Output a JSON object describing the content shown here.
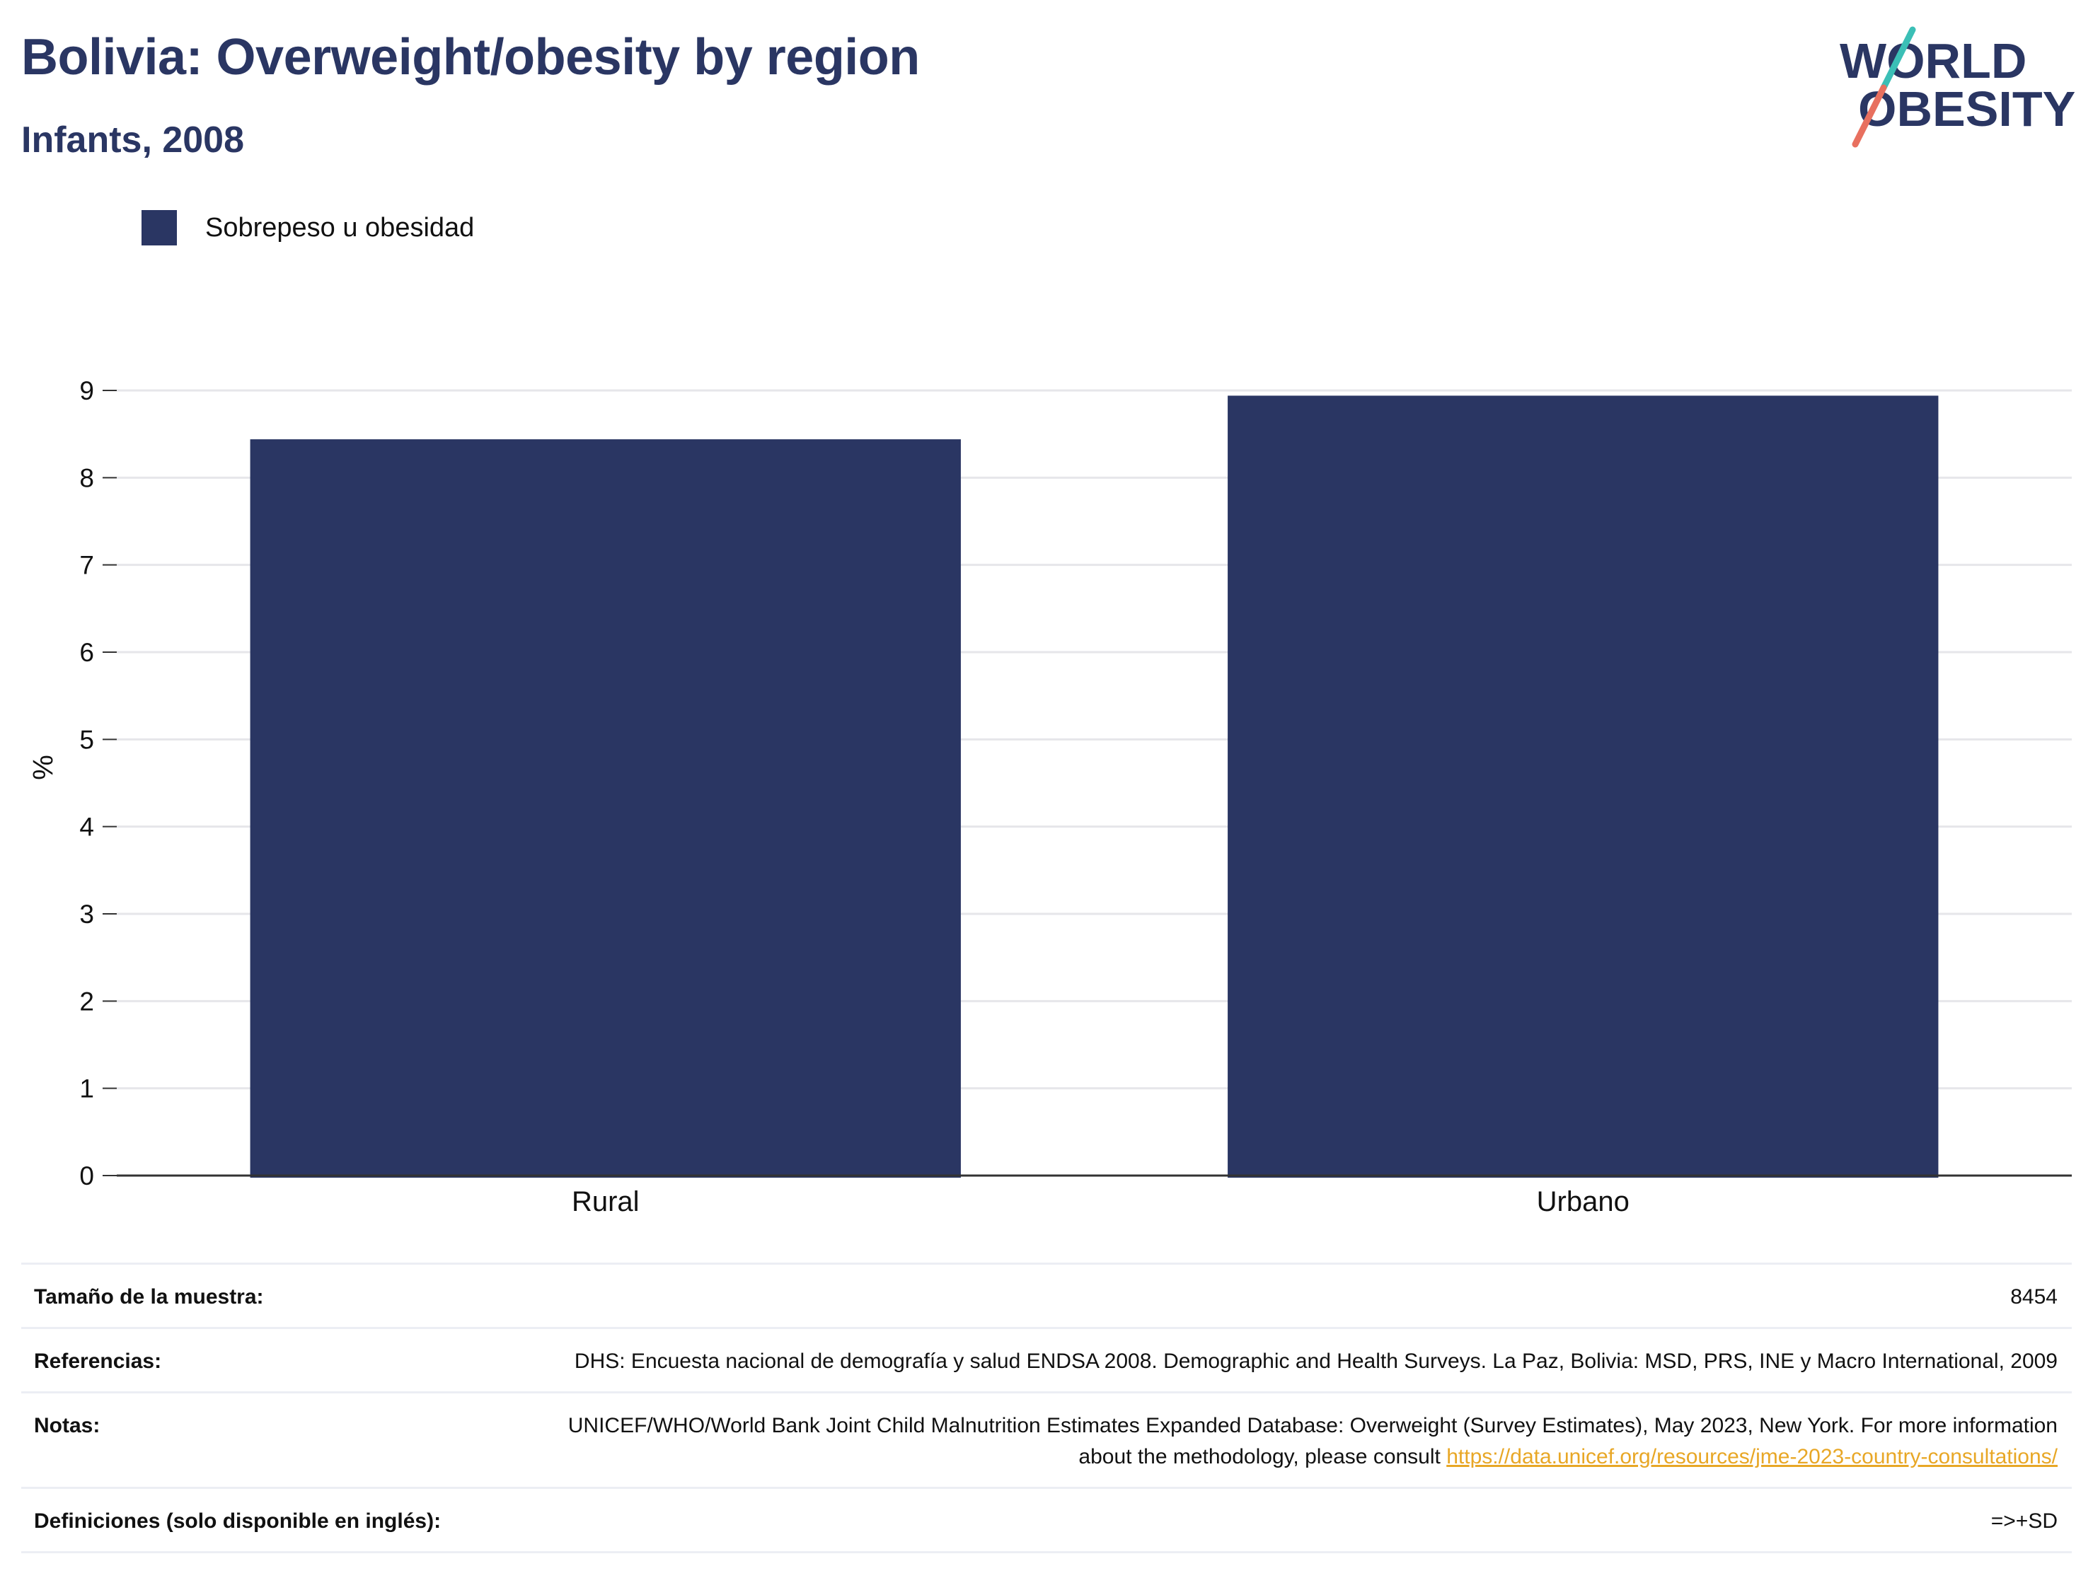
{
  "header": {
    "title": "Bolivia: Overweight/obesity by region",
    "subtitle": "Infants, 2008"
  },
  "logo": {
    "line1": "WORLD",
    "line2": "OBESITY",
    "text_color": "#2a3663",
    "slash_top_color": "#3bbfb6",
    "slash_bottom_color": "#e8705f"
  },
  "colors": {
    "bar": "#2a3663",
    "grid": "#e6e6ea",
    "axis": "#333333",
    "link": "#e8a726"
  },
  "chart_data": {
    "type": "bar",
    "categories": [
      "Rural",
      "Urbano"
    ],
    "series": [
      {
        "name": "Sobrepeso u obesidad",
        "values": [
          8.44,
          8.94
        ],
        "color": "#2a3663"
      }
    ],
    "title": "Bolivia: Overweight/obesity by region",
    "subtitle": "Infants, 2008",
    "xlabel": "",
    "ylabel": "%",
    "ylim": [
      0,
      9
    ],
    "yticks": [
      0,
      1,
      2,
      3,
      4,
      5,
      6,
      7,
      8,
      9
    ],
    "grid": true,
    "legend_position": "top-left"
  },
  "info": {
    "sample_label": "Tamaño de la muestra:",
    "sample_value": "8454",
    "refs_label": "Referencias:",
    "refs_value": "DHS: Encuesta nacional de demografía y salud ENDSA 2008. Demographic and Health Surveys. La Paz, Bolivia: MSD, PRS, INE y Macro International, 2009",
    "notes_label": "Notas:",
    "notes_value": "UNICEF/WHO/World Bank Joint Child Malnutrition Estimates Expanded Database: Overweight (Survey Estimates), May 2023, New York. For more information about the methodology, please consult ",
    "notes_link": "https://data.unicef.org/resources/jme-2023-country-consultations/",
    "defs_label": "Definiciones (solo disponible en inglés):",
    "defs_value": "=>+SD"
  }
}
